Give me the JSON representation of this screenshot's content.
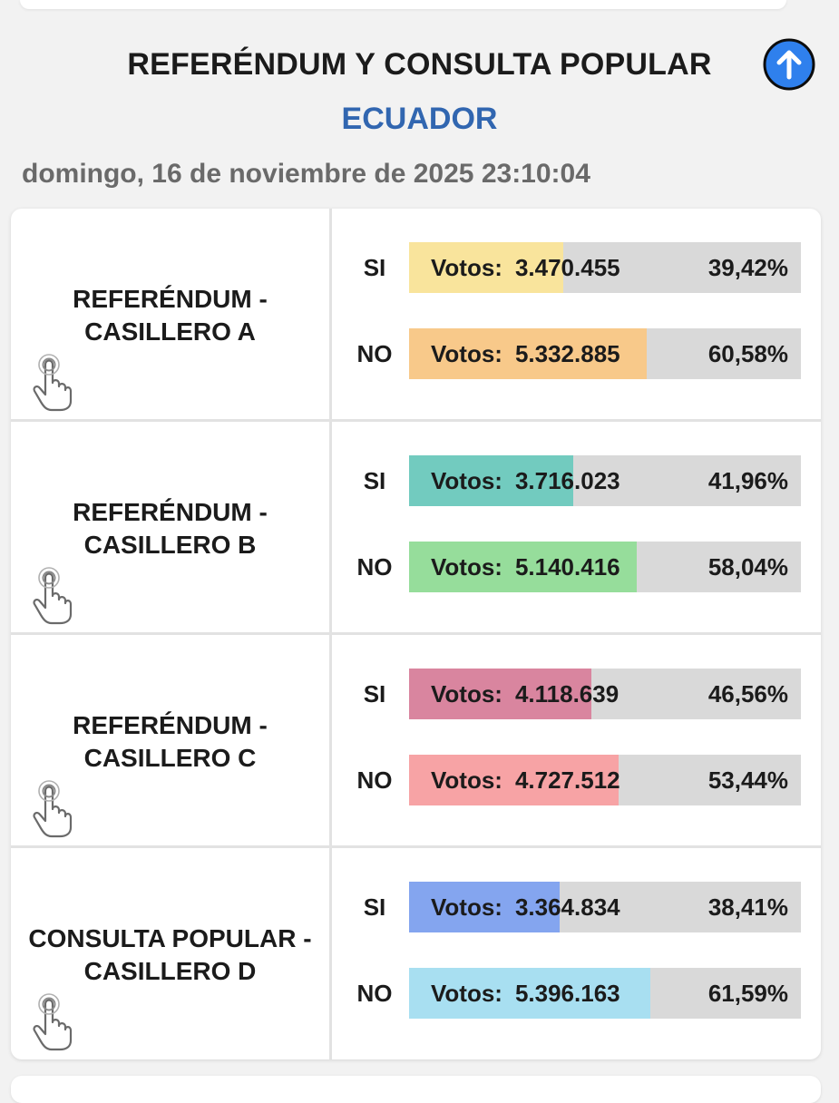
{
  "header": {
    "title": "REFERÉNDUM Y CONSULTA POPULAR",
    "subtitle": "ECUADOR",
    "datetime": "domingo, 16 de noviembre de 2025 23:10:04",
    "scroll_top_icon": "arrow-up-circle-icon",
    "accent_color": "#3166b0"
  },
  "votes_prefix": "Votos:",
  "rows": [
    {
      "title_line1": "REFERÉNDUM -",
      "title_line2": "CASILLERO A",
      "icon": "hand-pointer-icon",
      "options": [
        {
          "label": "SI",
          "votes": "3.470.455",
          "percent": "39,42%",
          "share": 0.3942,
          "color": "#f9e49c"
        },
        {
          "label": "NO",
          "votes": "5.332.885",
          "percent": "60,58%",
          "share": 0.6058,
          "color": "#f8c98a"
        }
      ]
    },
    {
      "title_line1": "REFERÉNDUM -",
      "title_line2": "CASILLERO B",
      "icon": "hand-pointer-icon",
      "options": [
        {
          "label": "SI",
          "votes": "3.716.023",
          "percent": "41,96%",
          "share": 0.4196,
          "color": "#72cbbf"
        },
        {
          "label": "NO",
          "votes": "5.140.416",
          "percent": "58,04%",
          "share": 0.5804,
          "color": "#96dd9b"
        }
      ]
    },
    {
      "title_line1": "REFERÉNDUM -",
      "title_line2": "CASILLERO C",
      "icon": "hand-pointer-icon",
      "options": [
        {
          "label": "SI",
          "votes": "4.118.639",
          "percent": "46,56%",
          "share": 0.4656,
          "color": "#d9859f"
        },
        {
          "label": "NO",
          "votes": "4.727.512",
          "percent": "53,44%",
          "share": 0.5344,
          "color": "#f7a3a5"
        }
      ]
    },
    {
      "title_line1": "CONSULTA POPULAR -",
      "title_line2": "CASILLERO D",
      "icon": "hand-pointer-icon",
      "options": [
        {
          "label": "SI",
          "votes": "3.364.834",
          "percent": "38,41%",
          "share": 0.3841,
          "color": "#84a5ef"
        },
        {
          "label": "NO",
          "votes": "5.396.163",
          "percent": "61,59%",
          "share": 0.6159,
          "color": "#a8dff1"
        }
      ]
    }
  ]
}
